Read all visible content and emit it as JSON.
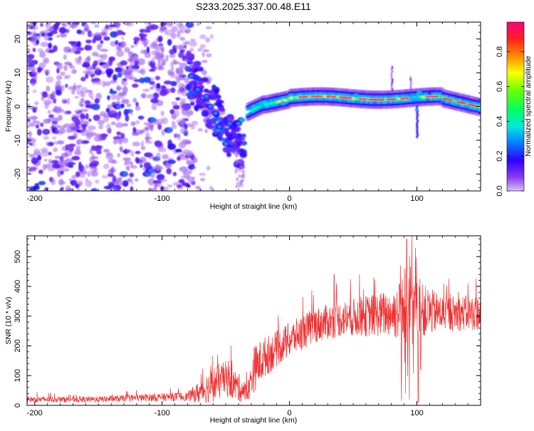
{
  "title": "S233.2025.337.00.48.E11",
  "chart_data": [
    {
      "type": "heatmap",
      "xlabel": "Height of straight line (km)",
      "ylabel": "Frequency (Hz)",
      "xlim": [
        -206,
        150
      ],
      "ylim": [
        -25,
        25
      ],
      "xticks": [
        -200,
        -100,
        0,
        100
      ],
      "yticks": [
        -20,
        -10,
        0,
        10,
        20
      ],
      "colorbar": {
        "label": "Normalized spectral amplitude",
        "range": [
          0,
          0.97
        ],
        "ticks": [
          "0.0",
          "0.2",
          "0.4",
          "0.6",
          "0.8"
        ],
        "tick_values": [
          0,
          0.2,
          0.4,
          0.6,
          0.8
        ],
        "colormap": [
          "#d8c4f4",
          "#8a3cf0",
          "#3000ff",
          "#0090ff",
          "#00e8e0",
          "#00ff60",
          "#70ff00",
          "#ffff00",
          "#ff8800",
          "#ff2020",
          "#ff0080"
        ]
      },
      "features": [
        {
          "name": "noise",
          "x_range": [
            -206,
            -75
          ],
          "freq_range": [
            -25,
            25
          ],
          "amplitude": "0.1-0.4"
        },
        {
          "name": "descending trace",
          "x_range": [
            -80,
            -35
          ],
          "freq_range": [
            -22,
            10
          ],
          "amplitude": "0.2-0.6"
        },
        {
          "name": "main trace",
          "x_range": [
            -25,
            150
          ],
          "freq_range": [
            0,
            4
          ],
          "amplitude": "0.4-0.97"
        },
        {
          "name": "vertical streak",
          "x": 80,
          "freq_range": [
            5,
            12
          ],
          "amplitude": "0.1-0.3"
        },
        {
          "name": "vertical streak",
          "x": 95,
          "freq_range": [
            5,
            9
          ],
          "amplitude": "0.1-0.3"
        },
        {
          "name": "vertical streak",
          "x": 100,
          "freq_range": [
            -9,
            0
          ],
          "amplitude": "0.2-0.4"
        }
      ]
    },
    {
      "type": "line",
      "xlabel": "Height of straight line (km)",
      "ylabel": "SNR (10 * v/v)",
      "xlim": [
        -206,
        150
      ],
      "ylim": [
        0,
        570
      ],
      "xticks": [
        -200,
        -100,
        0,
        100
      ],
      "yticks": [
        0,
        100,
        200,
        300,
        400,
        500
      ],
      "series": [
        {
          "name": "SNR",
          "color": "#ee3030",
          "envelope": [
            {
              "x": -206,
              "base": 20,
              "amp": 10
            },
            {
              "x": -150,
              "base": 20,
              "amp": 10
            },
            {
              "x": -120,
              "base": 25,
              "amp": 12
            },
            {
              "x": -80,
              "base": 30,
              "amp": 15
            },
            {
              "x": -70,
              "base": 45,
              "amp": 40
            },
            {
              "x": -60,
              "base": 70,
              "amp": 60
            },
            {
              "x": -50,
              "base": 90,
              "amp": 60
            },
            {
              "x": -40,
              "base": 60,
              "amp": 50
            },
            {
              "x": -33,
              "base": 40,
              "amp": 30
            },
            {
              "x": -28,
              "base": 120,
              "amp": 80
            },
            {
              "x": -20,
              "base": 160,
              "amp": 70
            },
            {
              "x": -10,
              "base": 190,
              "amp": 60
            },
            {
              "x": 0,
              "base": 220,
              "amp": 60
            },
            {
              "x": 20,
              "base": 270,
              "amp": 60
            },
            {
              "x": 40,
              "base": 290,
              "amp": 60
            },
            {
              "x": 60,
              "base": 300,
              "amp": 70
            },
            {
              "x": 80,
              "base": 310,
              "amp": 80
            },
            {
              "x": 90,
              "base": 320,
              "amp": 120
            },
            {
              "x": 100,
              "base": 320,
              "amp": 100
            },
            {
              "x": 120,
              "base": 310,
              "amp": 60
            },
            {
              "x": 150,
              "base": 310,
              "amp": 60
            }
          ],
          "spikes_up": [
            {
              "x": 92,
              "y": 560
            },
            {
              "x": 96,
              "y": 570
            },
            {
              "x": 99,
              "y": 530
            },
            {
              "x": 87,
              "y": 470
            },
            {
              "x": 55,
              "y": 440
            },
            {
              "x": 35,
              "y": 440
            },
            {
              "x": 140,
              "y": 410
            }
          ],
          "spikes_down": [
            {
              "x": 88,
              "y": 15
            },
            {
              "x": 94,
              "y": 20
            },
            {
              "x": 101,
              "y": 10
            },
            {
              "x": 103,
              "y": 120
            },
            {
              "x": 91,
              "y": 40
            }
          ]
        }
      ]
    }
  ]
}
